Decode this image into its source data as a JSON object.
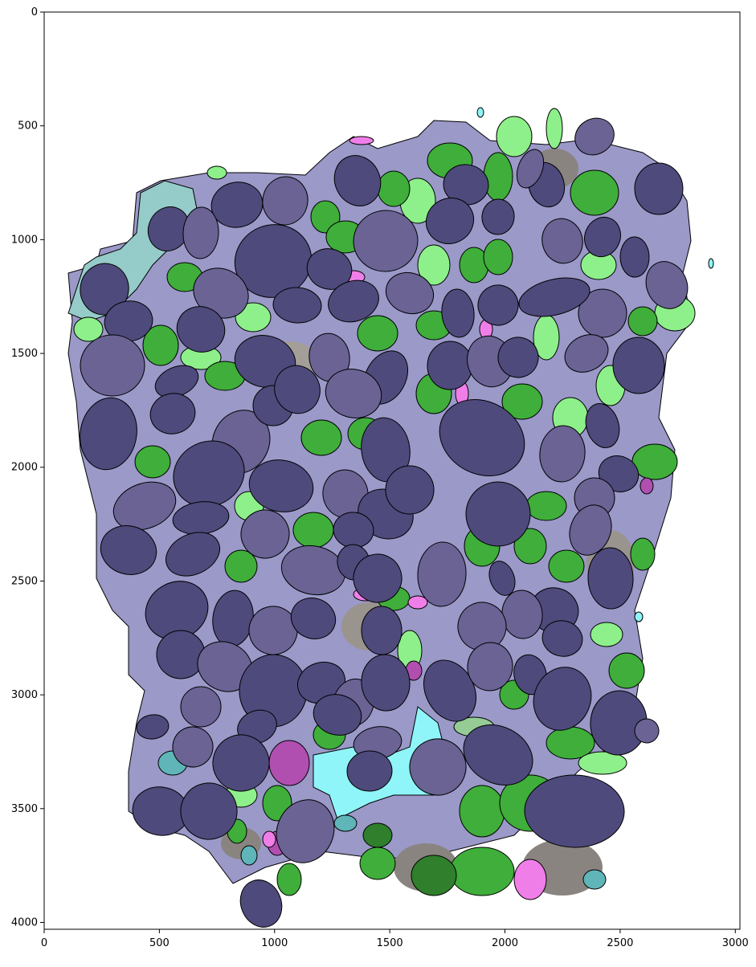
{
  "figure": {
    "description_kind": "segmentation overlay of stones on image with axes",
    "x_axis": {
      "ticks": [
        0,
        500,
        1000,
        1500,
        2000,
        2500,
        3000
      ],
      "range": [
        0,
        3020
      ]
    },
    "y_axis": {
      "ticks": [
        0,
        500,
        1000,
        1500,
        2000,
        2500,
        3000,
        3500,
        4000
      ],
      "range": [
        0,
        4030
      ],
      "inverted": true
    },
    "colors": {
      "stone_dark": "#4f4a7c",
      "stone_mid": "#6a6394",
      "mortar_region": "#9a99c8",
      "green_bright": "#8ef08a",
      "green_dark": "#3fae3a",
      "green_shadow": "#2f7f2c",
      "pink": "#f07ee8",
      "magenta": "#b04fb0",
      "cyan": "#8ff5f8",
      "teal": "#5fb5b8",
      "background_gray": "#8a8480",
      "outline": "#000000"
    }
  }
}
